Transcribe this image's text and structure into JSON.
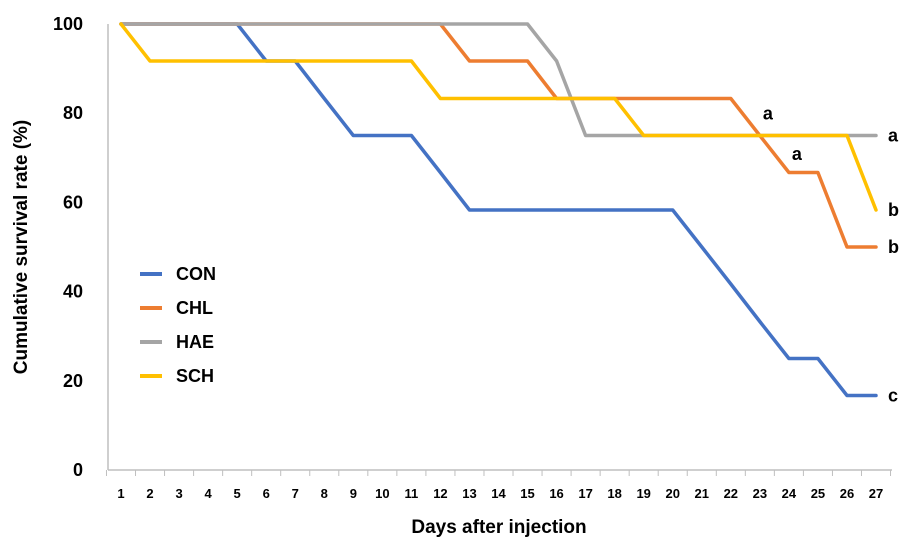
{
  "chart_data": {
    "type": "line",
    "title": "",
    "xlabel": "Days after injection",
    "ylabel": "Cumulative survival rate (%)",
    "x": [
      1,
      2,
      3,
      4,
      5,
      6,
      7,
      8,
      9,
      10,
      11,
      12,
      13,
      14,
      15,
      16,
      17,
      18,
      19,
      20,
      21,
      22,
      23,
      24,
      25,
      26,
      27
    ],
    "xlim": [
      1,
      27
    ],
    "ylim": [
      0,
      100
    ],
    "yticks": [
      0,
      20,
      40,
      60,
      80,
      100
    ],
    "grid": false,
    "legend_placement": "center-left",
    "series": [
      {
        "name": "CON",
        "color": "#4472C4",
        "values": [
          100,
          100,
          100,
          100,
          100,
          91.7,
          91.7,
          83.3,
          75,
          75,
          75,
          66.7,
          58.3,
          58.3,
          58.3,
          58.3,
          58.3,
          58.3,
          58.3,
          58.3,
          50,
          41.7,
          33.3,
          25,
          25,
          16.7,
          16.7
        ],
        "end_label": "c"
      },
      {
        "name": "CHL",
        "color": "#ED7D31",
        "values": [
          100,
          100,
          100,
          100,
          100,
          100,
          100,
          100,
          100,
          100,
          100,
          100,
          91.7,
          91.7,
          91.7,
          83.3,
          83.3,
          83.3,
          83.3,
          83.3,
          83.3,
          83.3,
          75,
          66.7,
          66.7,
          50,
          50
        ],
        "end_label": "b"
      },
      {
        "name": "HAE",
        "color": "#A5A5A5",
        "values": [
          100,
          100,
          100,
          100,
          100,
          100,
          100,
          100,
          100,
          100,
          100,
          100,
          100,
          100,
          100,
          91.7,
          75,
          75,
          75,
          75,
          75,
          75,
          75,
          75,
          75,
          75,
          75
        ],
        "end_label": "a"
      },
      {
        "name": "SCH",
        "color": "#FFC000",
        "values": [
          100,
          91.7,
          91.7,
          91.7,
          91.7,
          91.7,
          91.7,
          91.7,
          91.7,
          91.7,
          91.7,
          83.3,
          83.3,
          83.3,
          83.3,
          83.3,
          83.3,
          83.3,
          75,
          75,
          75,
          75,
          75,
          75,
          75,
          75,
          58.3
        ],
        "end_label": "b"
      }
    ],
    "annotations": [
      {
        "text": "a",
        "x": 23,
        "y": 79
      },
      {
        "text": "a",
        "x": 24,
        "y": 70
      }
    ]
  }
}
